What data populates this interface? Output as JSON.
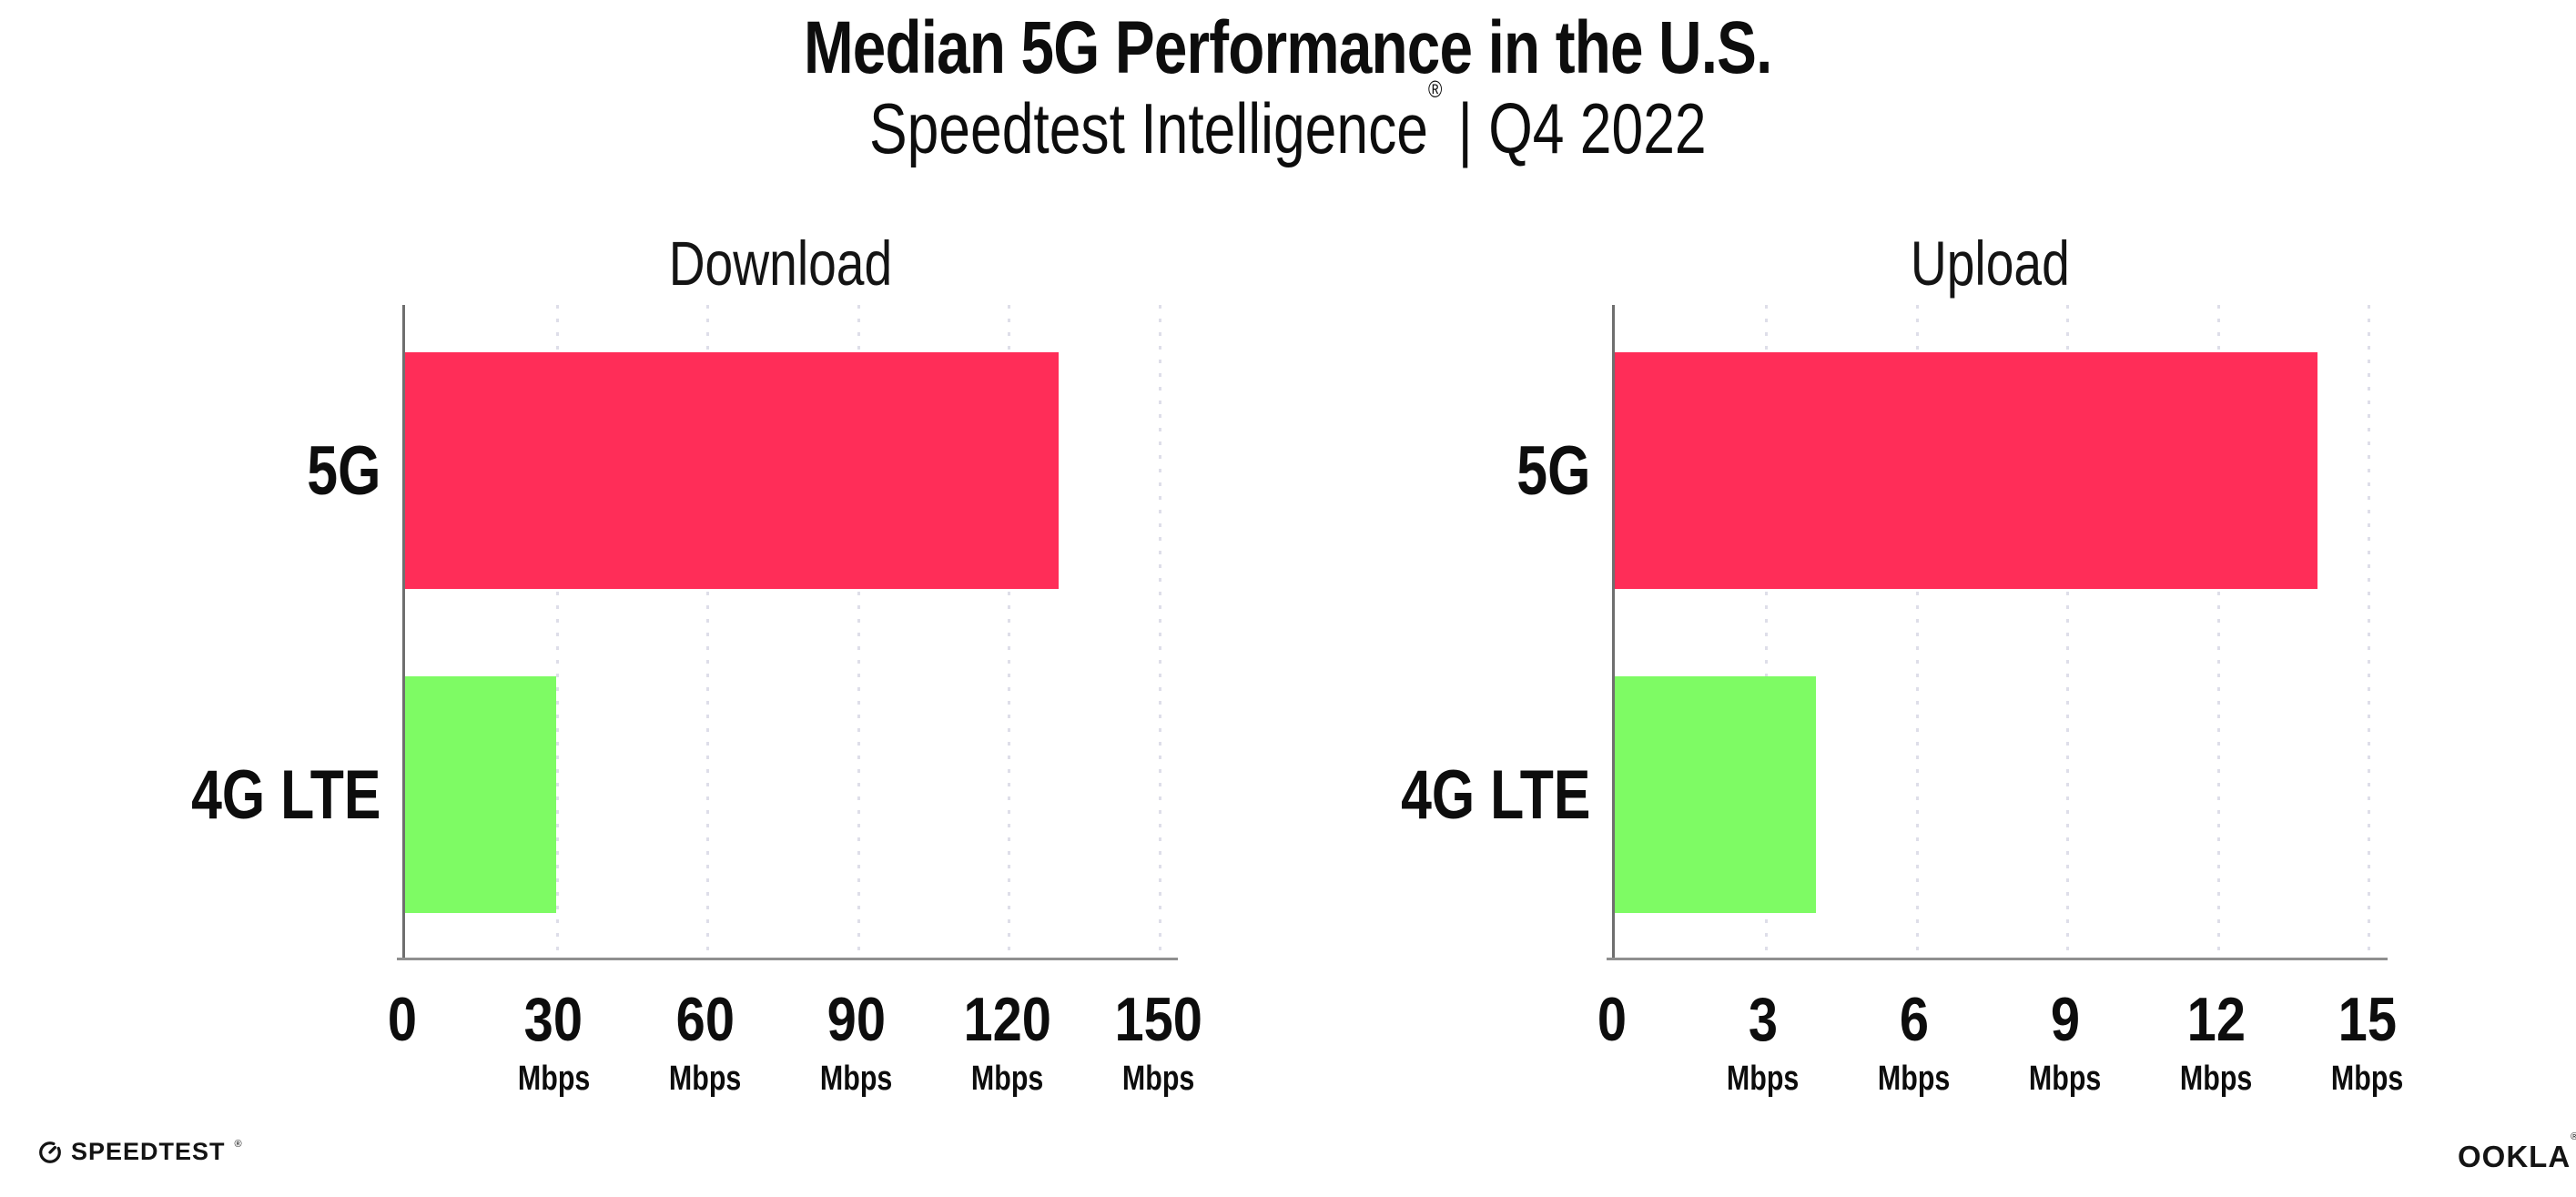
{
  "header": {
    "title": "Median 5G Performance in the U.S.",
    "subtitle": {
      "brand": "Speedtest Intelligence",
      "registered": "®",
      "rest": " | Q4 2022"
    }
  },
  "chart_data": [
    {
      "type": "bar",
      "orientation": "horizontal",
      "title": "Download",
      "categories": [
        "5G",
        "4G LTE"
      ],
      "values": [
        130,
        30
      ],
      "value_unit": "Mbps",
      "bar_colors": [
        "#FF2D58",
        "#7EFB64"
      ],
      "xlim": [
        0,
        150
      ],
      "xticks": [
        0,
        30,
        60,
        90,
        120,
        150
      ],
      "tick_unit_label": "Mbps",
      "grid": "dotted-vertical",
      "legend": "none"
    },
    {
      "type": "bar",
      "orientation": "horizontal",
      "title": "Upload",
      "categories": [
        "5G",
        "4G LTE"
      ],
      "values": [
        14,
        4
      ],
      "value_unit": "Mbps",
      "bar_colors": [
        "#FF2D58",
        "#7EFB64"
      ],
      "xlim": [
        0,
        15
      ],
      "xticks": [
        0,
        3,
        6,
        9,
        12,
        15
      ],
      "tick_unit_label": "Mbps",
      "grid": "dotted-vertical",
      "legend": "none"
    }
  ],
  "footer": {
    "speedtest": {
      "wordmark": "SPEEDTEST",
      "registered": "®"
    },
    "ookla": {
      "wordmark": "OOKLA",
      "registered": "®"
    }
  },
  "colors": {
    "bar_5g": "#FF2D58",
    "bar_4g_lte": "#7EFB64",
    "gridline": "#DEDEE9",
    "x_axis": "#8F8F8F",
    "y_axis": "#6F6F6F",
    "text": "#0D0D0D",
    "background": "#FFFFFF"
  }
}
